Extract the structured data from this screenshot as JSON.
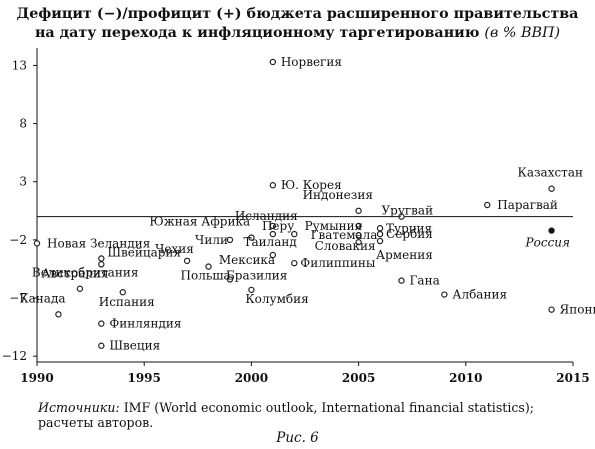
{
  "title": {
    "line1": "Дефицит (−)/профицит (+) бюджета расширенного правительства",
    "line2": "на дату перехода к инфляционному таргетированию",
    "unit": "(в % ВВП)"
  },
  "source": {
    "label": "Источники:",
    "text": " IMF (World economic outlook, International financial statistics); расчеты авторов."
  },
  "figure_caption": "Рис. 6",
  "chart_data": {
    "type": "scatter",
    "title": "",
    "xlabel": "",
    "ylabel": "",
    "xlim": [
      1990,
      2015
    ],
    "ylim": [
      -12.5,
      14.5
    ],
    "x_ticks": [
      1990,
      1995,
      2000,
      2005,
      2010,
      2015
    ],
    "y_ticks": [
      13,
      8,
      3,
      -2,
      -7,
      -12
    ],
    "zero_line": true,
    "grid": false,
    "legend": "none",
    "colors": {
      "marker_fill": "#ffffff",
      "marker_stroke": "#222222",
      "highlight_fill": "#111111",
      "axis": "#111111"
    },
    "points": [
      {
        "country": "Новая Зеландия",
        "x": 1990,
        "y": -2.3
      },
      {
        "country": "Канада",
        "x": 1991,
        "y": -8.4
      },
      {
        "country": "Великобритания",
        "x": 1992,
        "y": -6.2
      },
      {
        "country": "Австралия",
        "x": 1993,
        "y": -4.1
      },
      {
        "country": "Швейцария",
        "x": 1993,
        "y": -3.6
      },
      {
        "country": "Финляндия",
        "x": 1993,
        "y": -9.2
      },
      {
        "country": "Швеция",
        "x": 1993,
        "y": -11.1
      },
      {
        "country": "Испания",
        "x": 1994,
        "y": -6.5
      },
      {
        "country": "Польша",
        "x": 1998,
        "y": -4.3
      },
      {
        "country": "Чехия",
        "x": 1997,
        "y": -3.8
      },
      {
        "country": "Чили",
        "x": 1999,
        "y": -2.0
      },
      {
        "country": "Бразилия",
        "x": 1999,
        "y": -5.4
      },
      {
        "country": "Колумбия",
        "x": 2000,
        "y": -6.3
      },
      {
        "country": "Южная Африка",
        "x": 2000,
        "y": -1.8
      },
      {
        "country": "Таиланд",
        "x": 2001,
        "y": -1.5
      },
      {
        "country": "Мексика",
        "x": 2001,
        "y": -3.3
      },
      {
        "country": "Исландия",
        "x": 2001,
        "y": -0.8
      },
      {
        "country": "Норвегия",
        "x": 2001,
        "y": 13.3
      },
      {
        "country": "Ю. Корея",
        "x": 2001,
        "y": 2.7
      },
      {
        "country": "Перу",
        "x": 2002,
        "y": -1.5
      },
      {
        "country": "Филиппины",
        "x": 2002,
        "y": -4.0
      },
      {
        "country": "Индонезия",
        "x": 2005,
        "y": 0.5
      },
      {
        "country": "Румыния",
        "x": 2005,
        "y": -0.8
      },
      {
        "country": "Гватемала",
        "x": 2005,
        "y": -1.6
      },
      {
        "country": "Словакия",
        "x": 2005,
        "y": -2.2
      },
      {
        "country": "Турция",
        "x": 2006,
        "y": -1.0
      },
      {
        "country": "Сербия",
        "x": 2006,
        "y": -1.5
      },
      {
        "country": "Армения",
        "x": 2006,
        "y": -2.1
      },
      {
        "country": "Уругвай",
        "x": 2007,
        "y": 0.0
      },
      {
        "country": "Гана",
        "x": 2007,
        "y": -5.5
      },
      {
        "country": "Албания",
        "x": 2009,
        "y": -6.7
      },
      {
        "country": "Парагвай",
        "x": 2011,
        "y": 1.0
      },
      {
        "country": "Казахстан",
        "x": 2014,
        "y": 2.4
      },
      {
        "country": "Россия",
        "x": 2014,
        "y": -1.2,
        "highlight": true
      },
      {
        "country": "Япония",
        "x": 2014,
        "y": -8.0
      }
    ]
  }
}
